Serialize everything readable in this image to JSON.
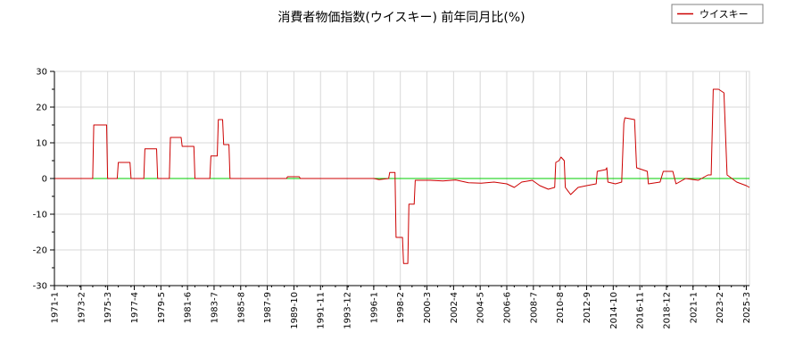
{
  "chart_data": {
    "type": "line",
    "title": "消費者物価指数(ウイスキー) 前年同月比(%)",
    "xlabel": "",
    "ylabel": "",
    "ylim": [
      -30,
      30
    ],
    "yticks": [
      -30,
      -20,
      -10,
      0,
      10,
      20,
      30
    ],
    "xlim": [
      "1971-1",
      "2025-6"
    ],
    "x_tick_labels": [
      "1971-1",
      "1973-2",
      "1975-3",
      "1977-4",
      "1979-5",
      "1981-6",
      "1983-7",
      "1985-8",
      "1987-9",
      "1989-10",
      "1991-11",
      "1993-12",
      "1996-1",
      "1998-2",
      "2000-3",
      "2002-4",
      "2004-5",
      "2006-6",
      "2008-7",
      "2010-8",
      "2012-9",
      "2014-10",
      "2016-11",
      "2018-12",
      "2021-1",
      "2023-2",
      "2025-3"
    ],
    "grid": true,
    "legend_position": "top-right",
    "zero_line_color": "#00cc00",
    "series": [
      {
        "name": "ウイスキー",
        "color": "#cc0000",
        "points": [
          [
            "1971-1",
            0
          ],
          [
            "1974-1",
            0
          ],
          [
            "1974-2",
            15
          ],
          [
            "1975-2",
            15
          ],
          [
            "1975-3",
            0
          ],
          [
            "1975-12",
            0
          ],
          [
            "1976-1",
            4.5
          ],
          [
            "1976-12",
            4.5
          ],
          [
            "1977-1",
            0
          ],
          [
            "1978-1",
            0
          ],
          [
            "1978-2",
            8.3
          ],
          [
            "1979-1",
            8.3
          ],
          [
            "1979-2",
            0
          ],
          [
            "1980-1",
            0
          ],
          [
            "1980-2",
            11.5
          ],
          [
            "1980-12",
            11.5
          ],
          [
            "1981-1",
            9
          ],
          [
            "1981-12",
            9
          ],
          [
            "1982-1",
            0
          ],
          [
            "1983-3",
            0
          ],
          [
            "1983-4",
            6.3
          ],
          [
            "1983-10",
            6.3
          ],
          [
            "1983-11",
            16.5
          ],
          [
            "1984-3",
            16.5
          ],
          [
            "1984-4",
            9.5
          ],
          [
            "1984-9",
            9.5
          ],
          [
            "1984-10",
            0
          ],
          [
            "1989-3",
            0
          ],
          [
            "1989-4",
            0.5
          ],
          [
            "1990-3",
            0.5
          ],
          [
            "1990-4",
            0
          ],
          [
            "1996-1",
            0
          ],
          [
            "1996-6",
            -0.3
          ],
          [
            "1997-3",
            0
          ],
          [
            "1997-4",
            1.7
          ],
          [
            "1997-9",
            1.7
          ],
          [
            "1997-10",
            -16.5
          ],
          [
            "1998-4",
            -16.5
          ],
          [
            "1998-5",
            -23.8
          ],
          [
            "1998-9",
            -23.8
          ],
          [
            "1998-10",
            -7.2
          ],
          [
            "1999-3",
            -7.2
          ],
          [
            "1999-4",
            -0.5
          ],
          [
            "2000-6",
            -0.5
          ],
          [
            "2001-6",
            -0.7
          ],
          [
            "2002-6",
            -0.4
          ],
          [
            "2003-6",
            -1.2
          ],
          [
            "2004-6",
            -1.3
          ],
          [
            "2005-6",
            -1
          ],
          [
            "2006-6",
            -1.5
          ],
          [
            "2007-1",
            -2.5
          ],
          [
            "2007-8",
            -1
          ],
          [
            "2008-6",
            -0.5
          ],
          [
            "2009-1",
            -2
          ],
          [
            "2009-9",
            -3
          ],
          [
            "2010-3",
            -2.5
          ],
          [
            "2010-4",
            4.5
          ],
          [
            "2010-7",
            5
          ],
          [
            "2010-9",
            6
          ],
          [
            "2010-12",
            5
          ],
          [
            "2011-1",
            -2.5
          ],
          [
            "2011-6",
            -4.5
          ],
          [
            "2012-1",
            -2.5
          ],
          [
            "2012-9",
            -2
          ],
          [
            "2013-6",
            -1.5
          ],
          [
            "2013-7",
            2
          ],
          [
            "2014-3",
            2.5
          ],
          [
            "2014-4",
            3
          ],
          [
            "2014-5",
            -1
          ],
          [
            "2014-12",
            -1.5
          ],
          [
            "2015-6",
            -1
          ],
          [
            "2015-8",
            15.5
          ],
          [
            "2015-9",
            17
          ],
          [
            "2016-6",
            16.5
          ],
          [
            "2016-8",
            3
          ],
          [
            "2017-6",
            2
          ],
          [
            "2017-7",
            -1.5
          ],
          [
            "2018-6",
            -1
          ],
          [
            "2018-9",
            2
          ],
          [
            "2019-6",
            2
          ],
          [
            "2019-9",
            -1.5
          ],
          [
            "2020-6",
            0
          ],
          [
            "2021-6",
            -0.5
          ],
          [
            "2022-3",
            1
          ],
          [
            "2022-6",
            1
          ],
          [
            "2022-8",
            25
          ],
          [
            "2023-1",
            25
          ],
          [
            "2023-6",
            24
          ],
          [
            "2023-9",
            1
          ],
          [
            "2024-6",
            -1
          ],
          [
            "2025-3",
            -2
          ],
          [
            "2025-6",
            -2.5
          ]
        ]
      }
    ]
  }
}
